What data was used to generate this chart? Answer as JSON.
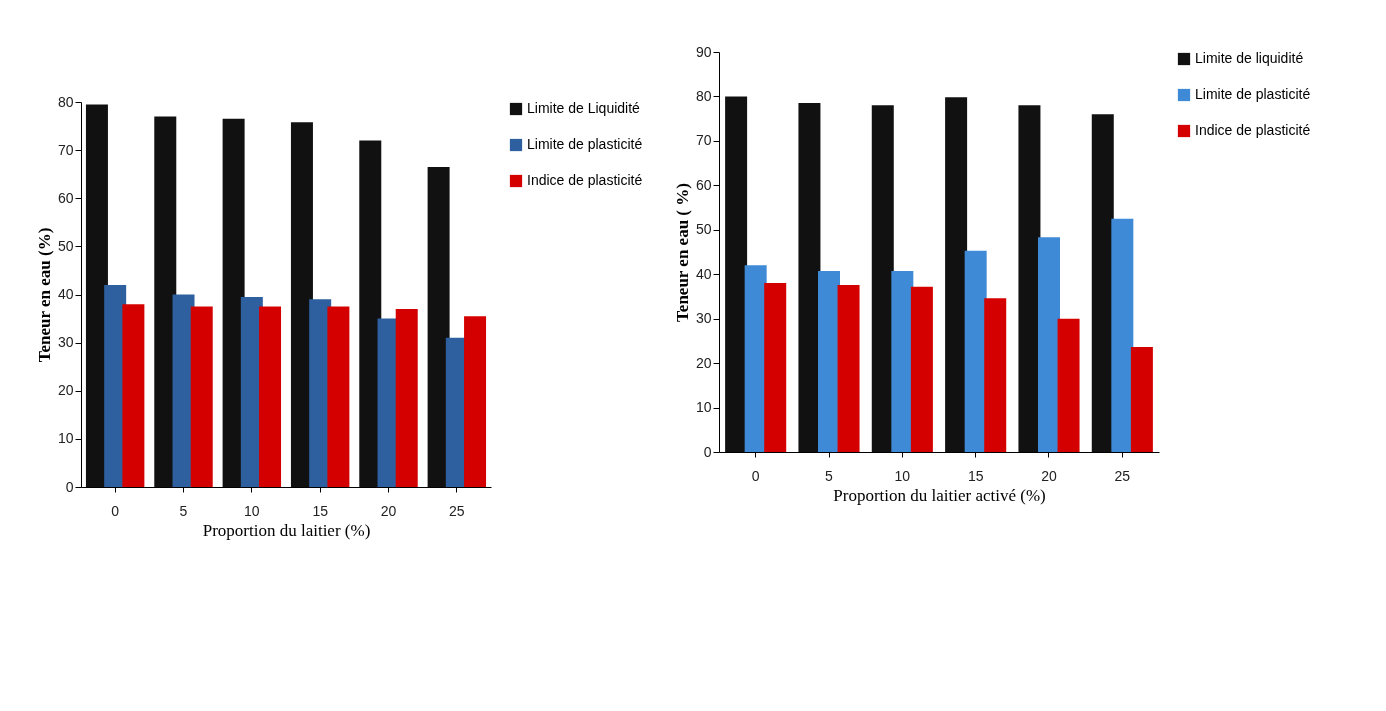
{
  "chart_data": [
    {
      "type": "bar",
      "xlabel": "Proportion du laitier (%)",
      "ylabel": "Teneur en eau (%)",
      "categories": [
        "0",
        "5",
        "10",
        "15",
        "20",
        "25"
      ],
      "ylim": [
        0,
        80
      ],
      "yticks": [
        0,
        10,
        20,
        30,
        40,
        50,
        60,
        70,
        80
      ],
      "legend": "right",
      "series": [
        {
          "name": "Limite de Liquidité",
          "color": "#111111",
          "values": [
            79.5,
            77,
            76.5,
            75.8,
            72,
            66.5
          ]
        },
        {
          "name": "Limite de plasticité",
          "color": "#2e5f9e",
          "values": [
            42,
            40,
            39.5,
            39,
            35,
            31
          ]
        },
        {
          "name": "Indice de plasticité",
          "color": "#d40000",
          "values": [
            38,
            37.5,
            37.5,
            37.5,
            37,
            35.5
          ]
        }
      ]
    },
    {
      "type": "bar",
      "xlabel": "Proportion du laitier activé (%)",
      "ylabel": "Teneur en eau ( %)",
      "categories": [
        "0",
        "5",
        "10",
        "15",
        "20",
        "25"
      ],
      "ylim": [
        0,
        90
      ],
      "yticks": [
        0,
        10,
        20,
        30,
        40,
        50,
        60,
        70,
        80,
        90
      ],
      "legend": "right",
      "series": [
        {
          "name": "Limite de liquidité",
          "color": "#111111",
          "values": [
            80,
            78.5,
            78,
            79.8,
            78,
            76
          ]
        },
        {
          "name": "Limite de plasticité",
          "color": "#3f8ad6",
          "values": [
            42,
            40.7,
            40.7,
            45.3,
            48.3,
            52.5
          ]
        },
        {
          "name": "Indice de plasticité",
          "color": "#d40000",
          "values": [
            38,
            37.6,
            37.2,
            34.6,
            30,
            23.6
          ]
        }
      ]
    }
  ]
}
